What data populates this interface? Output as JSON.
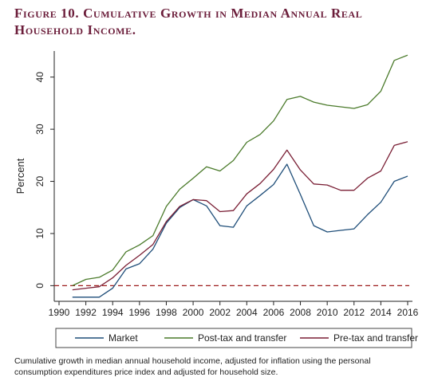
{
  "figure": {
    "label": "Figure 10.",
    "title": "Cumulative Growth in Median Annual Real Household Income.",
    "caption": "Cumulative growth in median annual household income, adjusted for inflation using the personal consumption expenditures price index and adjusted for household size."
  },
  "chart_data": {
    "type": "line",
    "title": "",
    "xlabel": "",
    "ylabel": "Percent",
    "xlim": [
      1990,
      2016
    ],
    "ylim": [
      -3,
      45
    ],
    "x_ticks": [
      1990,
      1992,
      1994,
      1996,
      1998,
      2000,
      2002,
      2004,
      2006,
      2008,
      2010,
      2012,
      2014,
      2016
    ],
    "y_ticks": [
      0,
      10,
      20,
      30,
      40
    ],
    "x_tick_labels": [
      "1990",
      "1992",
      "1994",
      "1996",
      "1998",
      "2000",
      "2002",
      "2004",
      "2006",
      "2008",
      "2010",
      "2012",
      "2014",
      "2016"
    ],
    "y_tick_labels": [
      "0",
      "10",
      "20",
      "30",
      "40"
    ],
    "grid": false,
    "reference_line": {
      "y": 0,
      "style": "dashed",
      "color": "#9c1b1b"
    },
    "legend_position": "bottom",
    "x": [
      1991,
      1992,
      1993,
      1994,
      1995,
      1996,
      1997,
      1998,
      1999,
      2000,
      2001,
      2002,
      2003,
      2004,
      2005,
      2006,
      2007,
      2008,
      2009,
      2010,
      2011,
      2012,
      2013,
      2014,
      2015,
      2016
    ],
    "series": [
      {
        "name": "Market",
        "color": "#1f4e79",
        "values": [
          -2.2,
          -2.2,
          -2.2,
          -0.5,
          3.2,
          4.2,
          7.0,
          12.0,
          15.0,
          16.5,
          15.3,
          11.5,
          11.2,
          15.3,
          17.3,
          19.4,
          23.3,
          17.5,
          11.5,
          10.3,
          10.6,
          10.9,
          13.6,
          16.0,
          20.0,
          21.0
        ]
      },
      {
        "name": "Post-tax and transfer",
        "color": "#4a7a2a",
        "values": [
          0.0,
          1.2,
          1.6,
          3.0,
          6.5,
          7.8,
          9.6,
          15.2,
          18.5,
          20.6,
          22.8,
          22.0,
          24.0,
          27.5,
          29.0,
          31.6,
          35.7,
          36.3,
          35.2,
          34.6,
          34.3,
          34.0,
          34.7,
          37.3,
          43.2,
          44.2
        ]
      },
      {
        "name": "Pre-tax and transfer",
        "color": "#7a1f35",
        "values": [
          -0.8,
          -0.5,
          -0.2,
          1.5,
          3.9,
          5.8,
          7.9,
          12.3,
          15.2,
          16.5,
          16.3,
          14.2,
          14.4,
          17.6,
          19.6,
          22.3,
          26.0,
          22.2,
          19.5,
          19.3,
          18.3,
          18.3,
          20.6,
          22.0,
          26.9,
          27.6
        ]
      }
    ]
  }
}
